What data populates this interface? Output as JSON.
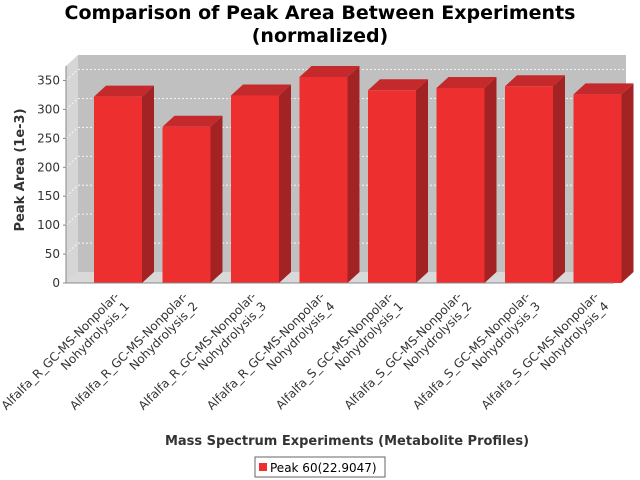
{
  "chart_data": {
    "type": "bar",
    "title_line1": "Comparison of Peak Area Between Experiments",
    "title_line2": "(normalized)",
    "xlabel": "Mass Spectrum Experiments (Metabolite Profiles)",
    "ylabel": "Peak Area (1e-3)",
    "ylim": [
      0,
      375
    ],
    "yticks": [
      0,
      50,
      100,
      150,
      200,
      250,
      300,
      350
    ],
    "grid": true,
    "legend_position": "bottom",
    "categories": [
      "Alfalfa_R_GC-MS-Nonpolar-Nohydrolysis_1",
      "Alfalfa_R_GC-MS-Nonpolar-Nohydrolysis_2",
      "Alfalfa_R_GC-MS-Nonpolar-Nohydrolysis_3",
      "Alfalfa_R_GC-MS-Nonpolar-Nohydrolysis_4",
      "Alfalfa_S_GC-MS-Nonpolar-Nohydrolysis_1",
      "Alfalfa_S_GC-MS-Nonpolar-Nohydrolysis_2",
      "Alfalfa_S_GC-MS-Nonpolar-Nohydrolysis_3",
      "Alfalfa_S_GC-MS-Nonpolar-Nohydrolysis_4"
    ],
    "category_lines": [
      [
        "Alfalfa_R_GC-MS-Nonpolar-",
        "Nohydrolysis_1"
      ],
      [
        "Alfalfa_R_GC-MS-Nonpolar-",
        "Nohydrolysis_2"
      ],
      [
        "Alfalfa_R_GC-MS-Nonpolar-",
        "Nohydrolysis_3"
      ],
      [
        "Alfalfa_R_GC-MS-Nonpolar-",
        "Nohydrolysis_4"
      ],
      [
        "Alfalfa_S_GC-MS-Nonpolar-",
        "Nohydrolysis_1"
      ],
      [
        "Alfalfa_S_GC-MS-Nonpolar-",
        "Nohydrolysis_2"
      ],
      [
        "Alfalfa_S_GC-MS-Nonpolar-",
        "Nohydrolysis_3"
      ],
      [
        "Alfalfa_S_GC-MS-Nonpolar-",
        "Nohydrolysis_4"
      ]
    ],
    "series": [
      {
        "name": "Peak 60(22.9047)",
        "color": "#ee2f30",
        "values": [
          322,
          270,
          324,
          356,
          333,
          337,
          340,
          326
        ]
      }
    ]
  }
}
